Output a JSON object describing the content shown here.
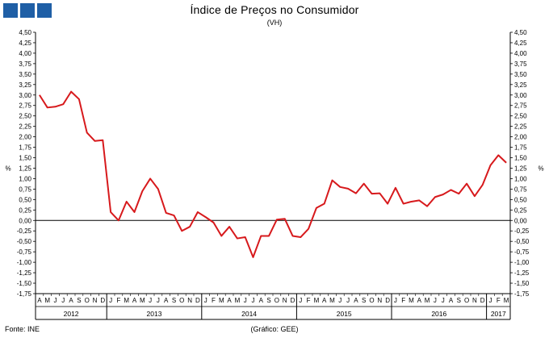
{
  "title": "Índice de Preços no Consumidor",
  "subtitle": "(VH)",
  "footer": {
    "source": "Fonte: INE",
    "credit": "(Gráfico: GEE)"
  },
  "colors": {
    "line": "#d7191c",
    "logo": "#1f5fa6"
  },
  "chart_data": {
    "type": "line",
    "title": "Índice de Preços no Consumidor",
    "subtitle": "(VH)",
    "ylabel": "%",
    "ylabel_right": "%",
    "ylim": [
      -1.75,
      4.5
    ],
    "ytick_step": 0.25,
    "grid": false,
    "months": [
      "A",
      "M",
      "J",
      "J",
      "A",
      "S",
      "O",
      "N",
      "D",
      "J",
      "F",
      "M",
      "A",
      "M",
      "J",
      "J",
      "A",
      "S",
      "O",
      "N",
      "D",
      "J",
      "F",
      "M",
      "A",
      "M",
      "J",
      "J",
      "A",
      "S",
      "O",
      "N",
      "D",
      "J",
      "F",
      "M",
      "A",
      "M",
      "J",
      "J",
      "A",
      "S",
      "O",
      "N",
      "D",
      "J",
      "F",
      "M",
      "A",
      "M",
      "J",
      "J",
      "A",
      "S",
      "O",
      "N",
      "D",
      "J",
      "F",
      "M"
    ],
    "years": [
      {
        "label": "2012",
        "start": 0,
        "end": 8
      },
      {
        "label": "2013",
        "start": 9,
        "end": 20
      },
      {
        "label": "2014",
        "start": 21,
        "end": 32
      },
      {
        "label": "2015",
        "start": 33,
        "end": 44
      },
      {
        "label": "2016",
        "start": 45,
        "end": 56
      },
      {
        "label": "2017",
        "start": 57,
        "end": 59
      }
    ],
    "series": [
      {
        "values": [
          3.0,
          2.7,
          2.72,
          2.78,
          3.08,
          2.9,
          2.1,
          1.9,
          1.92,
          0.2,
          0.0,
          0.45,
          0.2,
          0.7,
          1.0,
          0.75,
          0.18,
          0.12,
          -0.25,
          -0.15,
          0.2,
          0.08,
          -0.05,
          -0.37,
          -0.15,
          -0.43,
          -0.4,
          -0.88,
          -0.37,
          -0.37,
          0.02,
          0.04,
          -0.37,
          -0.4,
          -0.2,
          0.3,
          0.4,
          0.96,
          0.8,
          0.76,
          0.65,
          0.88,
          0.64,
          0.65,
          0.4,
          0.78,
          0.4,
          0.45,
          0.48,
          0.34,
          0.56,
          0.62,
          0.73,
          0.64,
          0.88,
          0.58,
          0.85,
          1.32,
          1.56,
          1.38
        ]
      }
    ]
  }
}
